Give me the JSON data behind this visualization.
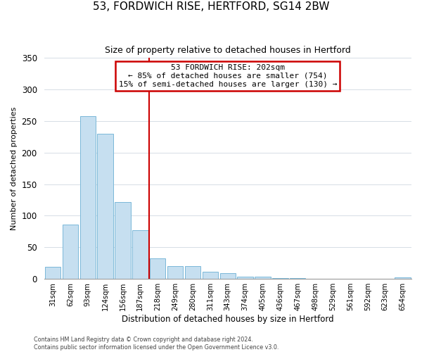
{
  "title": "53, FORDWICH RISE, HERTFORD, SG14 2BW",
  "subtitle": "Size of property relative to detached houses in Hertford",
  "xlabel": "Distribution of detached houses by size in Hertford",
  "ylabel": "Number of detached properties",
  "bar_labels": [
    "31sqm",
    "62sqm",
    "93sqm",
    "124sqm",
    "156sqm",
    "187sqm",
    "218sqm",
    "249sqm",
    "280sqm",
    "311sqm",
    "343sqm",
    "374sqm",
    "405sqm",
    "436sqm",
    "467sqm",
    "498sqm",
    "529sqm",
    "561sqm",
    "592sqm",
    "623sqm",
    "654sqm"
  ],
  "bar_values": [
    19,
    86,
    257,
    230,
    122,
    77,
    33,
    20,
    20,
    11,
    9,
    4,
    4,
    1,
    1,
    0,
    0,
    0,
    0,
    0,
    2
  ],
  "bar_color": "#c6dff0",
  "bar_edge_color": "#7ab8d9",
  "vline_x": 5.5,
  "vline_color": "#cc0000",
  "annotation_title": "53 FORDWICH RISE: 202sqm",
  "annotation_line1": "← 85% of detached houses are smaller (754)",
  "annotation_line2": "15% of semi-detached houses are larger (130) →",
  "annotation_box_color": "#ffffff",
  "annotation_box_edge_color": "#cc0000",
  "ylim": [
    0,
    350
  ],
  "yticks": [
    0,
    50,
    100,
    150,
    200,
    250,
    300,
    350
  ],
  "footer1": "Contains HM Land Registry data © Crown copyright and database right 2024.",
  "footer2": "Contains public sector information licensed under the Open Government Licence v3.0."
}
